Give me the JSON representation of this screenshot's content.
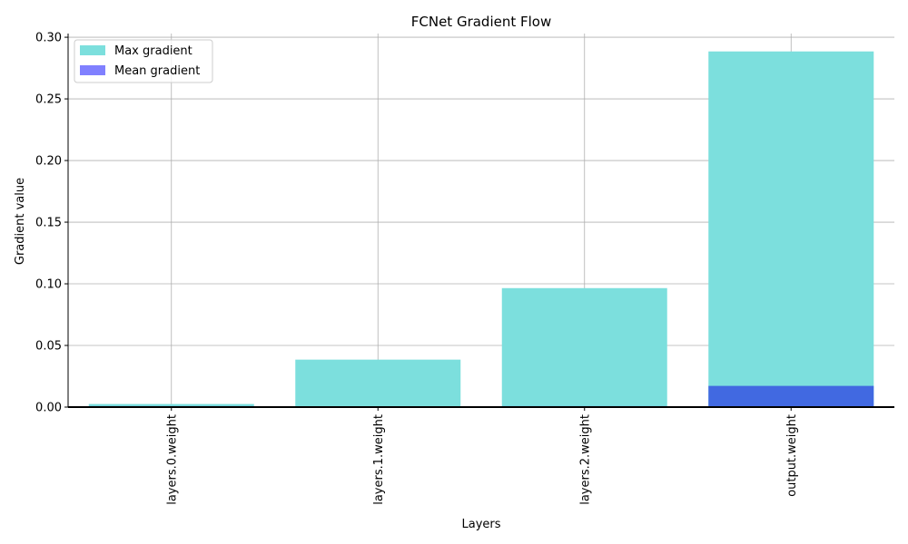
{
  "chart_data": {
    "type": "bar",
    "title": "FCNet Gradient Flow",
    "xlabel": "Layers",
    "ylabel": "Gradient value",
    "categories": [
      "layers.0.weight",
      "layers.1.weight",
      "layers.2.weight",
      "output.weight"
    ],
    "series": [
      {
        "name": "Max gradient",
        "color": "#7cdfdd",
        "values": [
          0.0025,
          0.0385,
          0.0965,
          0.2885
        ]
      },
      {
        "name": "Mean gradient",
        "color": "#4169e1",
        "legend_color": "#8080ff",
        "values": [
          0.0008,
          0.0004,
          0.0008,
          0.0172
        ]
      }
    ],
    "ylim": [
      0,
      0.303
    ],
    "xlim": [
      -0.5,
      3.5
    ],
    "yticks": [
      0.0,
      0.05,
      0.1,
      0.15,
      0.2,
      0.25,
      0.3
    ],
    "ytick_labels": [
      "0.00",
      "0.05",
      "0.10",
      "0.15",
      "0.20",
      "0.25",
      "0.30"
    ],
    "grid": true,
    "legend_position": "top-left"
  }
}
